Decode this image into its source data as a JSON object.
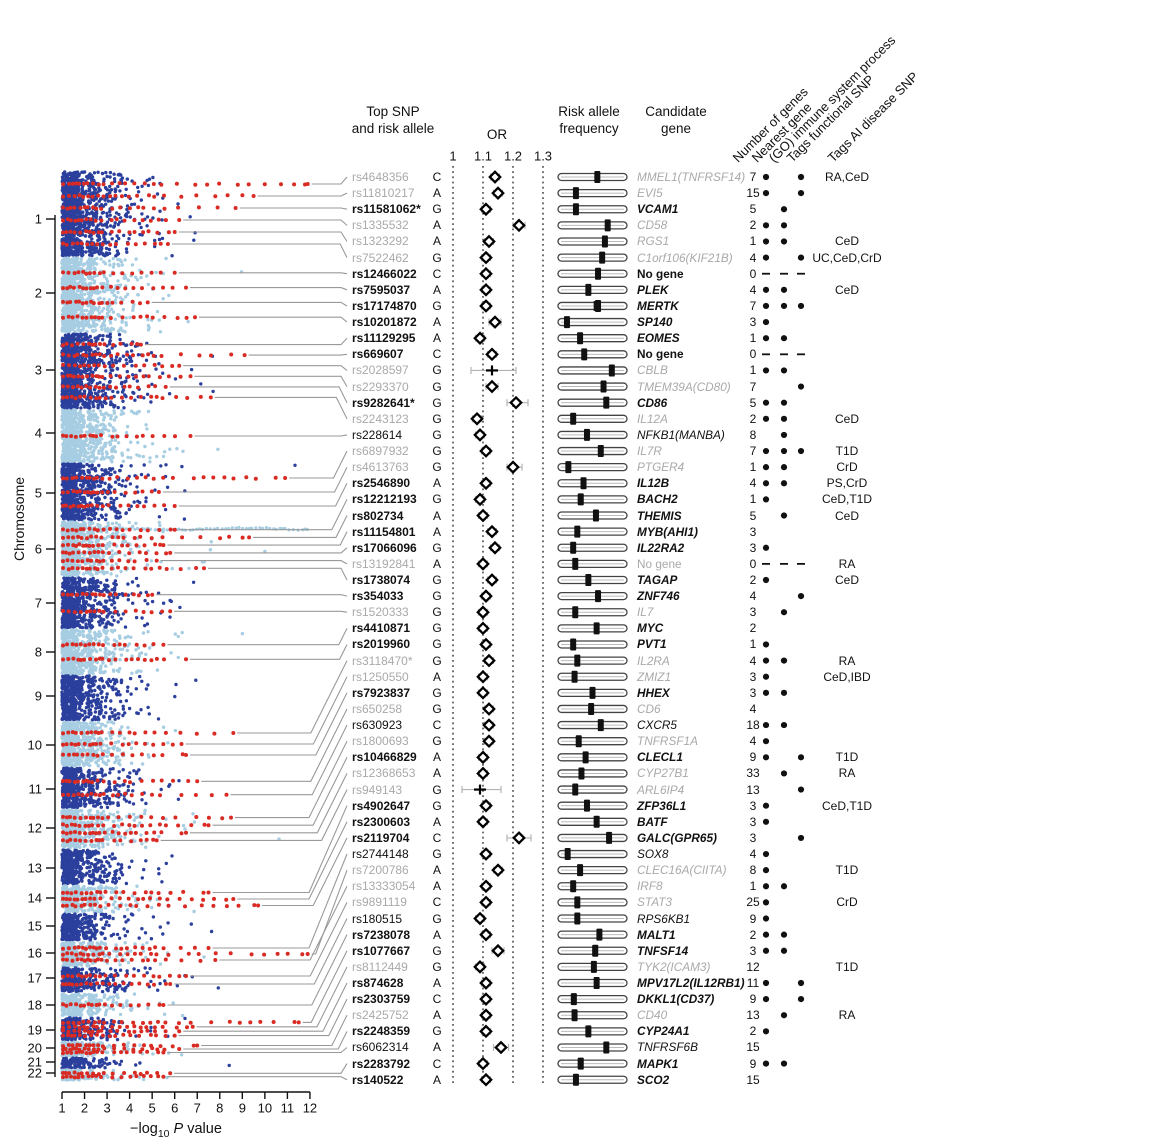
{
  "headers": {
    "top_snp": "Top SNP\nand risk allele",
    "or": "OR",
    "raf": "Risk allele\nfrequency",
    "gene": "Candidate\ngene",
    "rotated": [
      "Number of genes",
      "Nearest gene",
      "(GO) immune system process",
      "Tags functional SNP",
      "Tags AI disease SNP"
    ]
  },
  "axis": {
    "ylabel": "Chromosome",
    "xlabel_pre": "−log",
    "xlabel_sub": "10",
    "xlabel_italic": "P",
    "xlabel_post": " value",
    "x_ticks": [
      "1",
      "2",
      "3",
      "4",
      "5",
      "6",
      "7",
      "8",
      "9",
      "10",
      "11",
      "12"
    ],
    "chromosomes": [
      "1",
      "2",
      "3",
      "4",
      "5",
      "6",
      "7",
      "8",
      "9",
      "10",
      "11",
      "12",
      "13",
      "14",
      "15",
      "16",
      "17",
      "18",
      "19",
      "20",
      "21",
      "22"
    ]
  },
  "or_axis": {
    "ticks": [
      "1",
      "1.1",
      "1.2",
      "1.3"
    ],
    "values": [
      1,
      1.1,
      1.2,
      1.3
    ]
  },
  "colors": {
    "dark_blue": "#2b3f9d",
    "light_blue": "#a6cde2",
    "red": "#d92b23",
    "connector_gray": "#999999",
    "muted_text": "#a9a9a9",
    "ci_gray": "#b3b3b3"
  },
  "chart_data": {
    "type": "manhattan+forest+table",
    "x_range_logp": [
      1,
      12
    ],
    "or_range": [
      1,
      1.3
    ],
    "raf_range": [
      0,
      1
    ],
    "row_columns": [
      "snp",
      "risk_allele",
      "snp_style",
      "chromosome",
      "peak_neglog10P",
      "or",
      "or_lo",
      "or_hi",
      "or_marker",
      "risk_allele_freq",
      "raf_second_tick",
      "candidate_gene",
      "gene_style",
      "number_of_genes",
      "nearest_gene",
      "go_immune_system_process",
      "tags_functional_snp",
      "tags_ai_disease_snp"
    ],
    "rows": [
      [
        "rs4648356",
        "C",
        "gray",
        1,
        11.9,
        1.14,
        1.125,
        1.155,
        "d",
        0.57,
        null,
        "MMEL1(TNFRSF14)",
        "gray",
        7,
        1,
        0,
        1,
        "RA,CeD"
      ],
      [
        "rs11810217",
        "A",
        "gray",
        1,
        9.5,
        1.15,
        1.135,
        1.165,
        "d",
        0.26,
        null,
        "EVI5",
        "gray",
        15,
        1,
        0,
        1,
        ""
      ],
      [
        "rs11581062*",
        "G",
        "bold",
        1,
        8.7,
        1.11,
        1.095,
        1.125,
        "d",
        0.26,
        null,
        "VCAM1",
        "bold",
        5,
        0,
        1,
        0,
        ""
      ],
      [
        "rs1335532",
        "A",
        "gray",
        1,
        6.2,
        1.22,
        1.2,
        1.24,
        "d",
        0.72,
        null,
        "CD58",
        "gray",
        2,
        1,
        1,
        0,
        ""
      ],
      [
        "rs1323292",
        "A",
        "gray",
        1,
        6.0,
        1.12,
        1.105,
        1.135,
        "d",
        0.68,
        null,
        "RGS1",
        "gray",
        1,
        1,
        1,
        0,
        "CeD"
      ],
      [
        "rs7522462",
        "G",
        "gray",
        1,
        5.7,
        1.11,
        1.095,
        1.125,
        "d",
        0.64,
        null,
        "C1orf106(KIF21B)",
        "gray",
        4,
        1,
        0,
        1,
        "UC,CeD,CrD"
      ],
      [
        "rs12466022",
        "C",
        "bold",
        2,
        6.0,
        1.11,
        1.095,
        1.125,
        "d",
        0.58,
        null,
        "No gene",
        "bold-plain",
        0,
        "-",
        "-",
        "-",
        ""
      ],
      [
        "rs7595037",
        "A",
        "bold",
        2,
        6.5,
        1.11,
        1.095,
        1.125,
        "d",
        0.44,
        null,
        "PLEK",
        "bold",
        4,
        1,
        1,
        0,
        "CeD"
      ],
      [
        "rs17174870",
        "G",
        "bold",
        2,
        4.8,
        1.11,
        1.095,
        1.125,
        "d",
        0.58,
        0.53,
        "MERTK",
        "bold",
        7,
        1,
        1,
        1,
        ""
      ],
      [
        "rs10201872",
        "A",
        "bold",
        2,
        6.9,
        1.14,
        1.12,
        1.16,
        "d",
        0.13,
        null,
        "SP140",
        "bold",
        3,
        1,
        0,
        0,
        ""
      ],
      [
        "rs11129295",
        "A",
        "bold",
        3,
        4.5,
        1.09,
        1.075,
        1.105,
        "d",
        0.32,
        null,
        "EOMES",
        "bold",
        1,
        1,
        1,
        0,
        ""
      ],
      [
        "rs669607",
        "C",
        "bold",
        3,
        9.1,
        1.13,
        1.115,
        1.145,
        "d",
        0.38,
        null,
        "No gene",
        "bold-plain",
        0,
        "-",
        "-",
        "-",
        ""
      ],
      [
        "rs2028597",
        "G",
        "gray",
        3,
        6.2,
        1.13,
        1.06,
        1.21,
        "+",
        0.78,
        null,
        "CBLB",
        "gray",
        1,
        1,
        1,
        0,
        ""
      ],
      [
        "rs2293370",
        "G",
        "gray",
        3,
        6.7,
        1.13,
        1.11,
        1.15,
        "d",
        0.66,
        null,
        "TMEM39A(CD80)",
        "gray",
        7,
        0,
        0,
        1,
        ""
      ],
      [
        "rs9282641*",
        "G",
        "bold",
        3,
        5.6,
        1.21,
        1.18,
        1.25,
        "d",
        0.7,
        null,
        "CD86",
        "bold",
        5,
        1,
        1,
        0,
        ""
      ],
      [
        "rs2243123",
        "G",
        "gray",
        3,
        7.6,
        1.08,
        1.065,
        1.095,
        "d",
        0.22,
        null,
        "IL12A",
        "gray",
        2,
        1,
        1,
        0,
        "CeD"
      ],
      [
        "rs228614",
        "G",
        "plain",
        4,
        6.7,
        1.09,
        1.075,
        1.105,
        "d",
        0.42,
        null,
        "NFKB1(MANBA)",
        "plain",
        8,
        0,
        1,
        0,
        ""
      ],
      [
        "rs6897932",
        "G",
        "gray",
        5,
        10.9,
        1.11,
        1.095,
        1.125,
        "d",
        0.62,
        null,
        "IL7R",
        "gray",
        7,
        1,
        1,
        1,
        "T1D"
      ],
      [
        "rs4613763",
        "G",
        "gray",
        5,
        5.3,
        1.2,
        1.18,
        1.23,
        "d",
        0.15,
        null,
        "PTGER4",
        "gray",
        1,
        1,
        1,
        0,
        "CrD"
      ],
      [
        "rs2546890",
        "A",
        "bold",
        5,
        6.0,
        1.11,
        1.095,
        1.125,
        "d",
        0.37,
        0.34,
        "IL12B",
        "bold",
        4,
        1,
        1,
        0,
        "PS,CrD"
      ],
      [
        "rs12212193",
        "G",
        "bold",
        6,
        6.0,
        1.09,
        1.075,
        1.105,
        "d",
        0.33,
        0.3,
        "BACH2",
        "bold",
        1,
        1,
        0,
        0,
        "CeD,T1D"
      ],
      [
        "rs802734",
        "A",
        "bold",
        6,
        9.3,
        1.1,
        1.085,
        1.115,
        "d",
        0.55,
        null,
        "THEMIS",
        "bold",
        5,
        0,
        1,
        0,
        "CeD"
      ],
      [
        "rs11154801",
        "A",
        "bold",
        6,
        5.5,
        1.13,
        1.115,
        1.145,
        "d",
        0.28,
        null,
        "MYB(AHI1)",
        "bold",
        3,
        0,
        0,
        0,
        ""
      ],
      [
        "rs17066096",
        "G",
        "bold",
        6,
        5.8,
        1.14,
        1.125,
        1.155,
        "d",
        0.22,
        null,
        "IL22RA2",
        "bold",
        3,
        1,
        0,
        0,
        ""
      ],
      [
        "rs13192841",
        "A",
        "gray",
        6,
        5.2,
        1.1,
        1.085,
        1.115,
        "d",
        0.25,
        null,
        "No gene",
        "gray-plain",
        0,
        "-",
        "-",
        "-",
        "RA"
      ],
      [
        "rs1738074",
        "G",
        "bold",
        6,
        7.3,
        1.13,
        1.115,
        1.145,
        "d",
        0.44,
        null,
        "TAGAP",
        "bold",
        2,
        1,
        0,
        0,
        "CeD"
      ],
      [
        "rs354033",
        "G",
        "bold",
        7,
        5.0,
        1.11,
        1.095,
        1.125,
        "d",
        0.58,
        null,
        "ZNF746",
        "bold",
        4,
        0,
        0,
        1,
        ""
      ],
      [
        "rs1520333",
        "G",
        "gray",
        7,
        5.8,
        1.1,
        1.085,
        1.115,
        "d",
        0.25,
        null,
        "IL7",
        "gray",
        3,
        0,
        1,
        0,
        ""
      ],
      [
        "rs4410871",
        "G",
        "bold",
        8,
        5.5,
        1.1,
        1.085,
        1.115,
        "d",
        0.56,
        null,
        "MYC",
        "bold",
        2,
        0,
        0,
        0,
        ""
      ],
      [
        "rs2019960",
        "G",
        "bold",
        8,
        6.5,
        1.11,
        1.095,
        1.125,
        "d",
        0.22,
        null,
        "PVT1",
        "bold",
        1,
        1,
        0,
        0,
        ""
      ],
      [
        "rs3118470*",
        "G",
        "gray",
        10,
        8.6,
        1.12,
        1.105,
        1.135,
        "d",
        0.28,
        null,
        "IL2RA",
        "gray",
        4,
        1,
        1,
        0,
        "RA"
      ],
      [
        "rs1250550",
        "A",
        "gray",
        10,
        6.3,
        1.1,
        1.085,
        1.115,
        "d",
        0.24,
        null,
        "ZMIZ1",
        "gray",
        3,
        1,
        0,
        0,
        "CeD,IBD"
      ],
      [
        "rs7923837",
        "G",
        "bold",
        10,
        6.5,
        1.1,
        1.085,
        1.115,
        "d",
        0.5,
        null,
        "HHEX",
        "bold",
        3,
        1,
        1,
        0,
        ""
      ],
      [
        "rs650258",
        "G",
        "gray",
        11,
        7.0,
        1.12,
        1.105,
        1.135,
        "d",
        0.48,
        null,
        "CD6",
        "gray",
        4,
        0,
        0,
        0,
        ""
      ],
      [
        "rs630923",
        "C",
        "plain",
        11,
        8.3,
        1.12,
        1.105,
        1.135,
        "d",
        0.62,
        null,
        "CXCR5",
        "plain",
        18,
        1,
        1,
        0,
        ""
      ],
      [
        "rs1800693",
        "G",
        "gray",
        12,
        8.5,
        1.12,
        1.105,
        1.135,
        "d",
        0.3,
        null,
        "TNFRSF1A",
        "gray",
        4,
        1,
        0,
        0,
        ""
      ],
      [
        "rs10466829",
        "A",
        "bold",
        12,
        7.5,
        1.1,
        1.085,
        1.115,
        "d",
        0.4,
        null,
        "CLECL1",
        "bold",
        9,
        1,
        0,
        1,
        "T1D"
      ],
      [
        "rs12368653",
        "A",
        "gray",
        12,
        6.5,
        1.1,
        1.085,
        1.115,
        "d",
        0.34,
        null,
        "CYP27B1",
        "gray",
        33,
        0,
        1,
        0,
        "RA"
      ],
      [
        "rs949143",
        "G",
        "gray",
        12,
        5.2,
        1.09,
        1.03,
        1.16,
        "+",
        0.25,
        null,
        "ARL6IP4",
        "gray",
        13,
        0,
        0,
        1,
        ""
      ],
      [
        "rs4902647",
        "G",
        "bold",
        14,
        7.5,
        1.11,
        1.095,
        1.125,
        "d",
        0.42,
        null,
        "ZFP36L1",
        "bold",
        3,
        1,
        0,
        0,
        "CeD,T1D"
      ],
      [
        "rs2300603",
        "A",
        "bold",
        14,
        8.6,
        1.1,
        1.085,
        1.115,
        "d",
        0.56,
        null,
        "BATF",
        "bold",
        3,
        1,
        0,
        0,
        ""
      ],
      [
        "rs2119704",
        "C",
        "bold",
        14,
        9.7,
        1.22,
        1.18,
        1.26,
        "d",
        0.74,
        null,
        "GALC(GPR65)",
        "bold",
        3,
        0,
        0,
        1,
        ""
      ],
      [
        "rs2744148",
        "G",
        "plain",
        16,
        7.5,
        1.11,
        1.095,
        1.125,
        "d",
        0.14,
        null,
        "SOX8",
        "plain",
        4,
        1,
        0,
        0,
        ""
      ],
      [
        "rs7200786",
        "A",
        "gray",
        16,
        11.9,
        1.15,
        1.135,
        1.165,
        "d",
        0.32,
        null,
        "CLEC16A(CIITA)",
        "gray",
        8,
        1,
        0,
        0,
        "T1D"
      ],
      [
        "rs13333054",
        "A",
        "gray",
        16,
        7.8,
        1.11,
        1.095,
        1.125,
        "d",
        0.22,
        null,
        "IRF8",
        "gray",
        1,
        1,
        1,
        0,
        ""
      ],
      [
        "rs9891119",
        "C",
        "gray",
        17,
        6.5,
        1.11,
        1.095,
        1.125,
        "d",
        0.28,
        null,
        "STAT3",
        "gray",
        25,
        1,
        0,
        0,
        "CrD"
      ],
      [
        "rs180515",
        "G",
        "plain",
        17,
        5.8,
        1.09,
        1.075,
        1.105,
        "d",
        0.28,
        null,
        "RPS6KB1",
        "plain",
        9,
        1,
        0,
        0,
        ""
      ],
      [
        "rs7238078",
        "A",
        "bold",
        18,
        5.5,
        1.11,
        1.095,
        1.125,
        "d",
        0.6,
        null,
        "MALT1",
        "bold",
        2,
        1,
        1,
        0,
        ""
      ],
      [
        "rs1077667",
        "G",
        "bold",
        19,
        11.5,
        1.15,
        1.13,
        1.17,
        "d",
        0.54,
        0.51,
        "TNFSF14",
        "bold",
        3,
        1,
        1,
        0,
        ""
      ],
      [
        "rs8112449",
        "G",
        "gray",
        19,
        6.8,
        1.09,
        1.075,
        1.105,
        "d",
        0.52,
        null,
        "TYK2(ICAM3)",
        "gray",
        12,
        0,
        0,
        0,
        "T1D"
      ],
      [
        "rs874628",
        "A",
        "bold",
        19,
        6.2,
        1.11,
        1.095,
        1.125,
        "d",
        0.56,
        null,
        "MPV17L2(IL12RB1)",
        "bold",
        11,
        1,
        0,
        1,
        ""
      ],
      [
        "rs2303759",
        "C",
        "bold",
        19,
        6.0,
        1.11,
        1.095,
        1.125,
        "d",
        0.23,
        0.2,
        "DKKL1(CD37)",
        "bold",
        9,
        1,
        0,
        1,
        ""
      ],
      [
        "rs2425752",
        "A",
        "gray",
        20,
        7.0,
        1.11,
        1.095,
        1.125,
        "d",
        0.24,
        null,
        "CD40",
        "gray",
        13,
        0,
        1,
        0,
        "RA"
      ],
      [
        "rs2248359",
        "G",
        "bold",
        20,
        6.2,
        1.11,
        1.095,
        1.125,
        "d",
        0.44,
        null,
        "CYP24A1",
        "bold",
        2,
        1,
        0,
        0,
        ""
      ],
      [
        "rs6062314",
        "A",
        "plain",
        20,
        5.5,
        1.16,
        1.135,
        1.185,
        "d",
        0.7,
        null,
        "TNFRSF6B",
        "plain",
        15,
        0,
        0,
        0,
        ""
      ],
      [
        "rs2283792",
        "C",
        "bold",
        22,
        5.8,
        1.1,
        1.085,
        1.115,
        "d",
        0.33,
        0.3,
        "MAPK1",
        "bold",
        9,
        1,
        1,
        0,
        ""
      ],
      [
        "rs140522",
        "A",
        "bold",
        22,
        5.5,
        1.11,
        1.095,
        1.125,
        "d",
        0.26,
        null,
        "SCO2",
        "bold",
        15,
        0,
        0,
        0,
        ""
      ]
    ]
  }
}
